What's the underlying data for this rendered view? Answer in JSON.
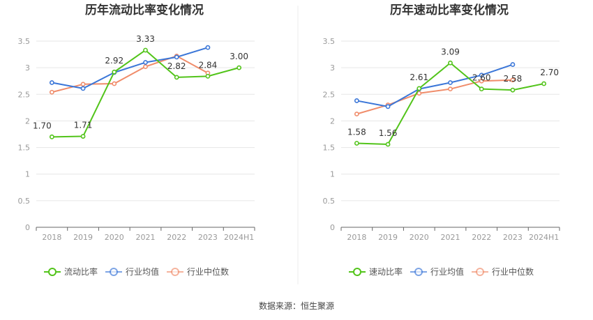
{
  "source_text": "数据来源：恒生聚源",
  "colors": {
    "current": "#52c41a",
    "avg": "#3a76d8",
    "median": "#f08c6a",
    "grid": "#e6e6e6",
    "axis": "#666666"
  },
  "chart_data": [
    {
      "type": "line",
      "title": "历年流动比率变化情况",
      "categories": [
        "2018",
        "2019",
        "2020",
        "2021",
        "2022",
        "2023",
        "2024H1"
      ],
      "ylim": [
        0,
        3.5
      ],
      "yticks": [
        "0",
        "0.5",
        "1",
        "1.5",
        "2",
        "2.5",
        "3",
        "3.5"
      ],
      "grid": true,
      "legend_position": "bottom",
      "series": [
        {
          "name": "流动比率",
          "color_key": "current",
          "values": [
            1.7,
            1.71,
            2.92,
            3.33,
            2.82,
            2.84,
            3.0
          ],
          "labels": [
            "1.70",
            "1.71",
            "2.92",
            "3.33",
            "2.82",
            "2.84",
            "3.00"
          ]
        },
        {
          "name": "行业均值",
          "color_key": "avg",
          "values": [
            2.72,
            2.61,
            2.91,
            3.1,
            3.2,
            3.38,
            null
          ]
        },
        {
          "name": "行业中位数",
          "color_key": "median",
          "values": [
            2.54,
            2.69,
            2.7,
            3.02,
            3.22,
            2.9,
            null
          ]
        }
      ]
    },
    {
      "type": "line",
      "title": "历年速动比率变化情况",
      "categories": [
        "2018",
        "2019",
        "2020",
        "2021",
        "2022",
        "2023",
        "2024H1"
      ],
      "ylim": [
        0,
        3.5
      ],
      "yticks": [
        "0",
        "0.5",
        "1",
        "1.5",
        "2",
        "2.5",
        "3",
        "3.5"
      ],
      "grid": true,
      "legend_position": "bottom",
      "series": [
        {
          "name": "速动比率",
          "color_key": "current",
          "values": [
            1.58,
            1.56,
            2.61,
            3.09,
            2.6,
            2.58,
            2.7
          ],
          "labels": [
            "1.58",
            "1.56",
            "2.61",
            "3.09",
            "2.60",
            "2.58",
            "2.70"
          ]
        },
        {
          "name": "行业均值",
          "color_key": "avg",
          "values": [
            2.38,
            2.27,
            2.6,
            2.72,
            2.86,
            3.06,
            null
          ]
        },
        {
          "name": "行业中位数",
          "color_key": "median",
          "values": [
            2.13,
            2.3,
            2.52,
            2.6,
            2.75,
            2.77,
            null
          ]
        }
      ]
    }
  ]
}
